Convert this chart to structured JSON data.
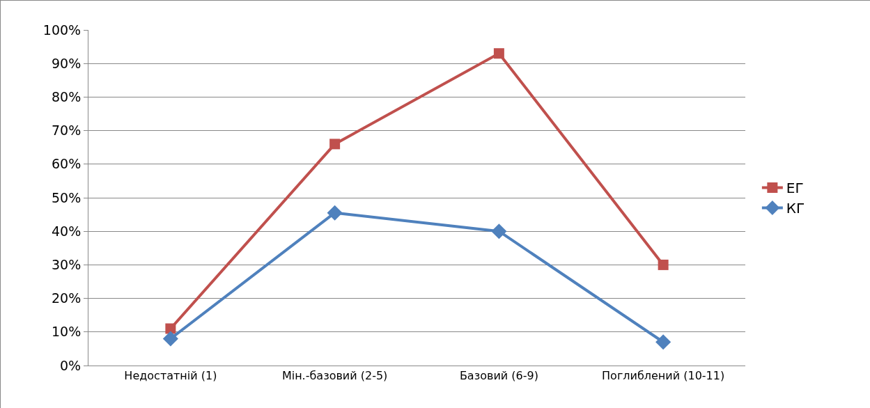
{
  "chart_data": {
    "type": "line",
    "categories": [
      "Недостатній (1)",
      "Мін.-базовий (2-5)",
      "Базовий (6-9)",
      "Поглиблений (10-11)"
    ],
    "series": [
      {
        "name": "ЕГ",
        "color": "#c0504d",
        "marker": "square",
        "values": [
          11,
          66,
          93,
          30
        ]
      },
      {
        "name": "КГ",
        "color": "#4f81bd",
        "marker": "diamond",
        "values": [
          8,
          45.5,
          40,
          7
        ]
      }
    ],
    "ylim": [
      0,
      100
    ],
    "yticks": [
      {
        "value": 0,
        "label": "0%"
      },
      {
        "value": 10,
        "label": "10%"
      },
      {
        "value": 20,
        "label": "20%"
      },
      {
        "value": 30,
        "label": "30%"
      },
      {
        "value": 40,
        "label": "40%"
      },
      {
        "value": 50,
        "label": "50%"
      },
      {
        "value": 60,
        "label": "60%"
      },
      {
        "value": 70,
        "label": "70%"
      },
      {
        "value": 80,
        "label": "80%"
      },
      {
        "value": 90,
        "label": "90%"
      },
      {
        "value": 100,
        "label": "100%"
      }
    ],
    "grid": "y",
    "legend": "right",
    "line_style": "solid"
  }
}
